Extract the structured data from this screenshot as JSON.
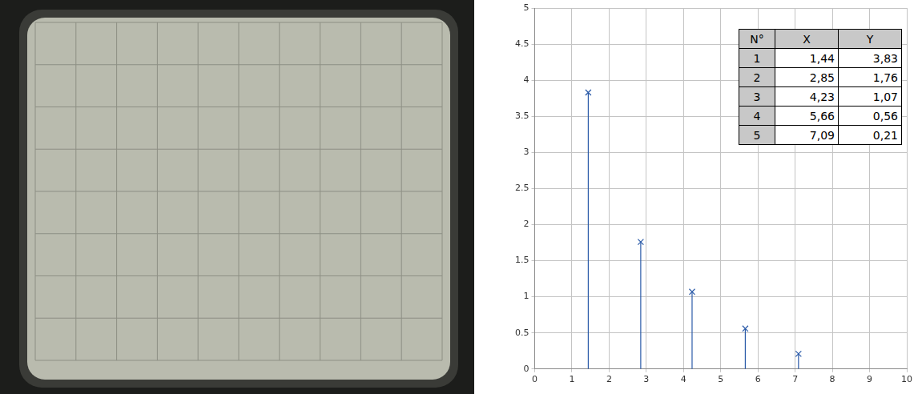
{
  "chart_data": {
    "type": "stem",
    "x": [
      1.44,
      2.85,
      4.23,
      5.66,
      7.09
    ],
    "values": [
      3.83,
      1.76,
      1.07,
      0.56,
      0.21
    ],
    "color": "#2a5aa8",
    "marker": "x",
    "xlim": [
      0,
      10
    ],
    "xticks": [
      0,
      1,
      2,
      3,
      4,
      5,
      6,
      7,
      8,
      9,
      10
    ],
    "ylim": [
      0,
      5
    ],
    "yticks": [
      0,
      0.5,
      1,
      1.5,
      2,
      2.5,
      3,
      3.5,
      4,
      4.5,
      5
    ],
    "grid": true
  },
  "table": {
    "header": [
      "N°",
      "X",
      "Y"
    ],
    "rows": [
      [
        "1",
        "1,44",
        "3,83"
      ],
      [
        "2",
        "2,85",
        "1,76"
      ],
      [
        "3",
        "4,23",
        "1,07"
      ],
      [
        "4",
        "5,66",
        "0,56"
      ],
      [
        "5",
        "7,09",
        "0,21"
      ]
    ]
  }
}
